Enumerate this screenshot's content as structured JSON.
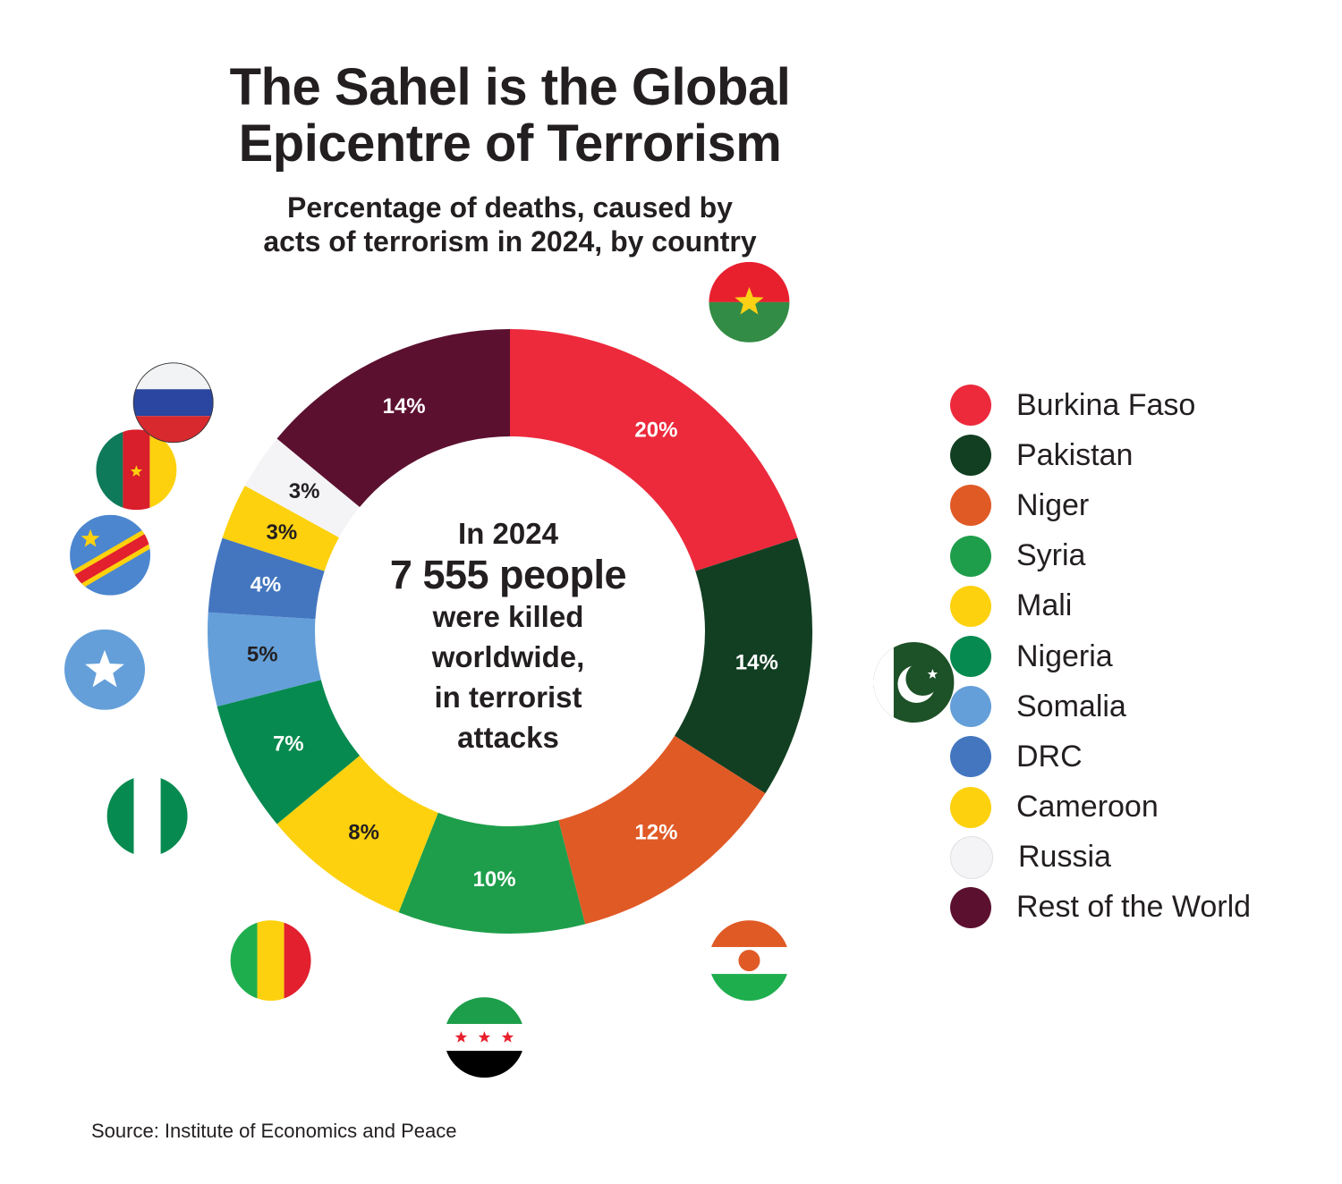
{
  "title_lines": [
    "The Sahel is the Global",
    "Epicentre of Terrorism"
  ],
  "subtitle_lines": [
    "Percentage of deaths, caused by",
    "acts of terrorism in 2024, by country"
  ],
  "center_text": {
    "line1": "In 2024",
    "line2": "7 555 people",
    "line3": "were killed",
    "line4": "worldwide,",
    "line5": "in terrorist",
    "line6": "attacks"
  },
  "source": "Source: Institute of Economics and Peace",
  "chart_data": {
    "type": "pie",
    "subtype": "donut",
    "categories": [
      "Burkina Faso",
      "Pakistan",
      "Niger",
      "Syria",
      "Mali",
      "Nigeria",
      "Somalia",
      "DRC",
      "Cameroon",
      "Russia",
      "Rest of the World"
    ],
    "values": [
      20,
      14,
      12,
      10,
      8,
      7,
      5,
      4,
      3,
      3,
      14
    ],
    "labels": [
      "20%",
      "14%",
      "12%",
      "10%",
      "8%",
      "7%",
      "5%",
      "4%",
      "3%",
      "3%",
      "14%"
    ],
    "colors": [
      "#ec2a3c",
      "#123f22",
      "#e05a26",
      "#1e9e4b",
      "#fdd10e",
      "#078a4f",
      "#649fd9",
      "#4476c0",
      "#fdd10e",
      "#f4f4f6",
      "#5c1030"
    ],
    "label_colors": [
      "#ffffff",
      "#ffffff",
      "#ffffff",
      "#ffffff",
      "#231f20",
      "#ffffff",
      "#231f20",
      "#ffffff",
      "#231f20",
      "#231f20",
      "#ffffff"
    ],
    "flag_icons": [
      "burkina-faso-flag-icon",
      "pakistan-flag-icon",
      "niger-flag-icon",
      "syria-flag-icon",
      "mali-flag-icon",
      "nigeria-flag-icon",
      "somalia-flag-icon",
      "drc-flag-icon",
      "cameroon-flag-icon",
      "russia-flag-icon",
      ""
    ],
    "legend_placement": "right",
    "start": "12 o'clock, clockwise"
  }
}
